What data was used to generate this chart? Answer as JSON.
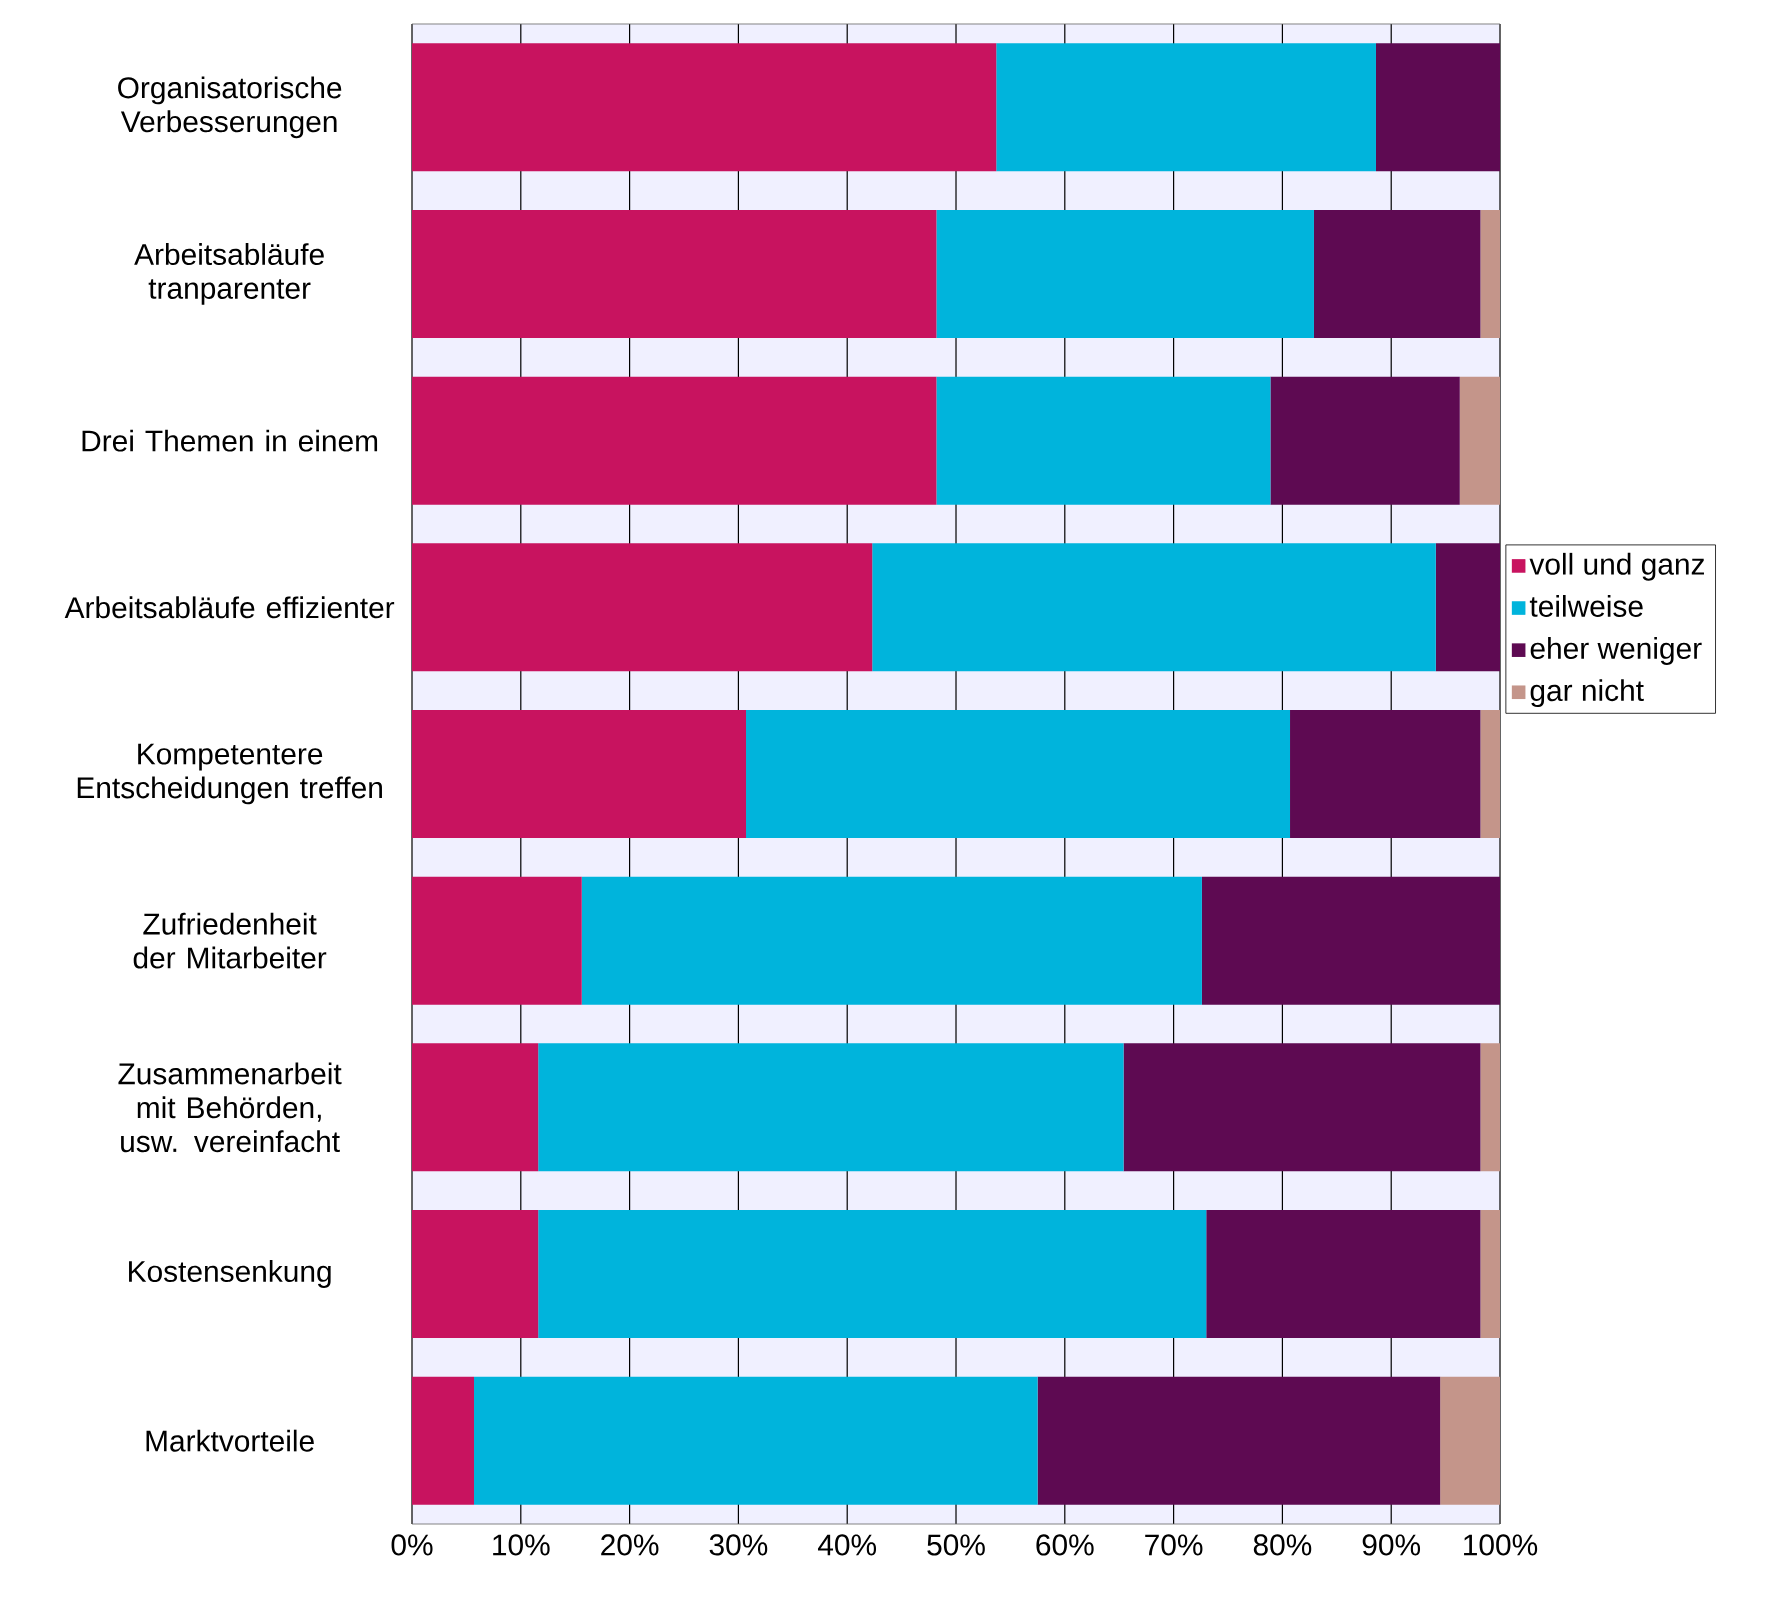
{
  "chart_data": {
    "type": "bar",
    "orientation": "horizontal",
    "stacked": true,
    "categories": [
      "Organisatorische Verbesserungen",
      "Arbeitsabläufe tranparenter",
      "Drei Themen in einem",
      "Arbeitsabläufe effizienter",
      "Kompetentere Entscheidungen treffen",
      "Zufriedenheit der Mitarbeiter",
      "Zusammenarbeit mit Behörden, usw. vereinfacht",
      "Kostensenkung",
      "Marktvorteile"
    ],
    "series": [
      {
        "name": "voll und ganz",
        "color": "#c8135f",
        "values": [
          53.7,
          48.2,
          48.2,
          42.3,
          30.7,
          15.6,
          11.6,
          11.6,
          5.7
        ]
      },
      {
        "name": "teilweise",
        "color": "#00b4dc",
        "values": [
          34.9,
          34.7,
          30.7,
          51.8,
          50.0,
          57.0,
          53.8,
          61.4,
          51.8
        ]
      },
      {
        "name": "eher weniger",
        "color": "#5e0a52",
        "values": [
          11.4,
          15.3,
          17.4,
          5.9,
          17.5,
          27.4,
          32.8,
          25.2,
          37.0
        ]
      },
      {
        "name": "gar nicht",
        "color": "#c4958a",
        "values": [
          0,
          1.8,
          3.7,
          0,
          1.8,
          0,
          1.8,
          1.8,
          5.5
        ]
      }
    ],
    "xlim": [
      0,
      100
    ],
    "xticks": [
      {
        "value": 0,
        "label": "0%"
      },
      {
        "value": 10,
        "label": "10%"
      },
      {
        "value": 20,
        "label": "20%"
      },
      {
        "value": 30,
        "label": "30%"
      },
      {
        "value": 40,
        "label": "40%"
      },
      {
        "value": 50,
        "label": "50%"
      },
      {
        "value": 60,
        "label": "60%"
      },
      {
        "value": 70,
        "label": "70%"
      },
      {
        "value": 80,
        "label": "80%"
      },
      {
        "value": 90,
        "label": "90%"
      },
      {
        "value": 100,
        "label": "100%"
      }
    ],
    "grid": "x",
    "legend": "right"
  }
}
